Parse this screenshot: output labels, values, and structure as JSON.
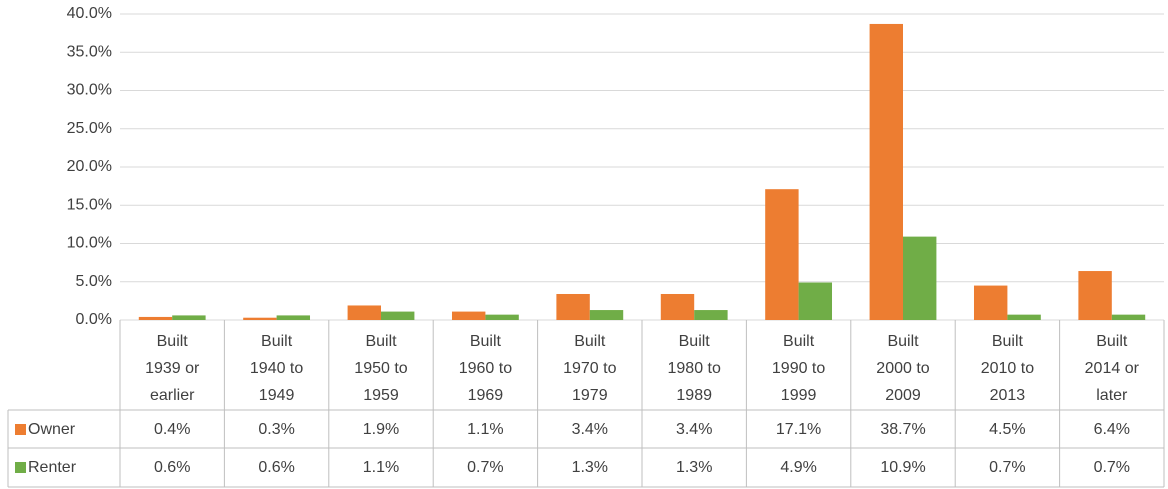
{
  "chart_data": {
    "type": "bar",
    "categories": [
      "Built 1939 or earlier",
      "Built 1940 to 1949",
      "Built 1950 to 1959",
      "Built 1960 to 1969",
      "Built 1970 to 1979",
      "Built 1980 to 1989",
      "Built 1990 to 1999",
      "Built 2000 to 2009",
      "Built 2010 to 2013",
      "Built 2014 or later"
    ],
    "series": [
      {
        "name": "Owner",
        "color": "#ed7d31",
        "values": [
          0.4,
          0.3,
          1.9,
          1.1,
          3.4,
          3.4,
          17.1,
          38.7,
          4.5,
          6.4
        ],
        "value_labels": [
          "0.4%",
          "0.3%",
          "1.9%",
          "1.1%",
          "3.4%",
          "3.4%",
          "17.1%",
          "38.7%",
          "4.5%",
          "6.4%"
        ]
      },
      {
        "name": "Renter",
        "color": "#70ad47",
        "values": [
          0.6,
          0.6,
          1.1,
          0.7,
          1.3,
          1.3,
          4.9,
          10.9,
          0.7,
          0.7
        ],
        "value_labels": [
          "0.6%",
          "0.6%",
          "1.1%",
          "0.7%",
          "1.3%",
          "1.3%",
          "4.9%",
          "10.9%",
          "0.7%",
          "0.7%"
        ]
      }
    ],
    "ylim": [
      0,
      40
    ],
    "yticks": [
      {
        "value": 0,
        "label": "0.0%"
      },
      {
        "value": 5,
        "label": "5.0%"
      },
      {
        "value": 10,
        "label": "10.0%"
      },
      {
        "value": 15,
        "label": "15.0%"
      },
      {
        "value": 20,
        "label": "20.0%"
      },
      {
        "value": 25,
        "label": "25.0%"
      },
      {
        "value": 30,
        "label": "30.0%"
      },
      {
        "value": 35,
        "label": "35.0%"
      },
      {
        "value": 40,
        "label": "40.0%"
      }
    ],
    "grid": true
  }
}
